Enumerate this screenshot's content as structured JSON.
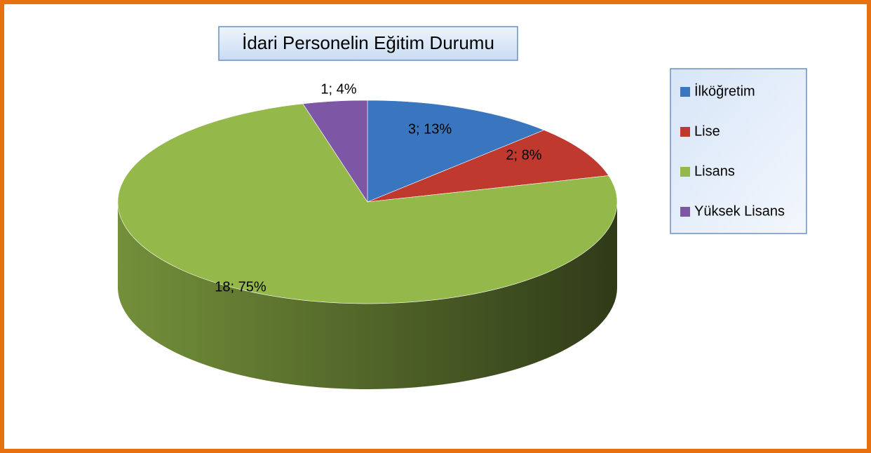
{
  "chart_data": {
    "type": "pie",
    "title": "İdari Personelin Eğitim Durumu",
    "categories": [
      "İlköğretim",
      "Lise",
      "Lisans",
      "Yüksek Lisans"
    ],
    "values": [
      3,
      2,
      18,
      1
    ],
    "value_labels": [
      "3; 13%",
      "2; 8%",
      "18; 75%",
      "1; 4%"
    ],
    "colors": [
      "#3a76c0",
      "#c0392f",
      "#94b84a",
      "#7d57a6"
    ],
    "legend": "right"
  }
}
